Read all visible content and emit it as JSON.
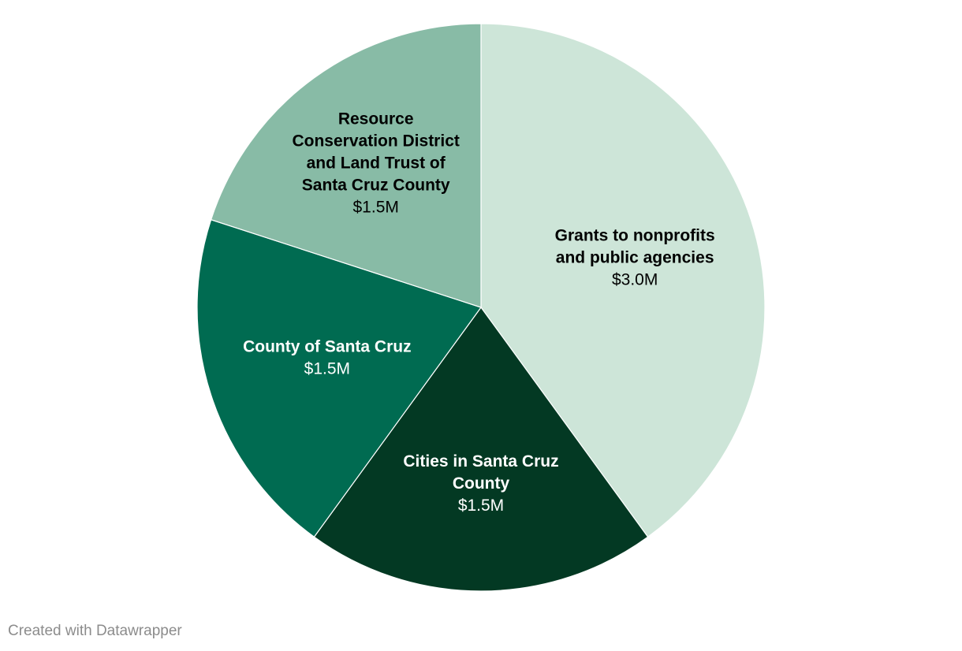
{
  "chart_data": {
    "type": "pie",
    "title": "",
    "slices": [
      {
        "label": "Grants to nonprofits and public agencies",
        "label_lines": [
          "Grants to nonprofits",
          "and public agencies"
        ],
        "value": 3.0,
        "value_label": "$3.0M",
        "color": "#cde5d8",
        "text_color": "#000000"
      },
      {
        "label": "Cities in Santa Cruz County",
        "label_lines": [
          "Cities in Santa Cruz",
          "County"
        ],
        "value": 1.5,
        "value_label": "$1.5M",
        "color": "#033923",
        "text_color": "#ffffff"
      },
      {
        "label": "County of Santa Cruz",
        "label_lines": [
          "County of Santa Cruz"
        ],
        "value": 1.5,
        "value_label": "$1.5M",
        "color": "#006b51",
        "text_color": "#ffffff"
      },
      {
        "label": "Resource Conservation District and Land Trust of Santa Cruz County",
        "label_lines": [
          "Resource",
          "Conservation District",
          "and Land Trust of",
          "Santa Cruz County"
        ],
        "value": 1.5,
        "value_label": "$1.5M",
        "color": "#88bba6",
        "text_color": "#000000"
      }
    ],
    "start": "12 o'clock",
    "direction": "clockwise"
  },
  "footer": {
    "credit": "Created with Datawrapper"
  }
}
